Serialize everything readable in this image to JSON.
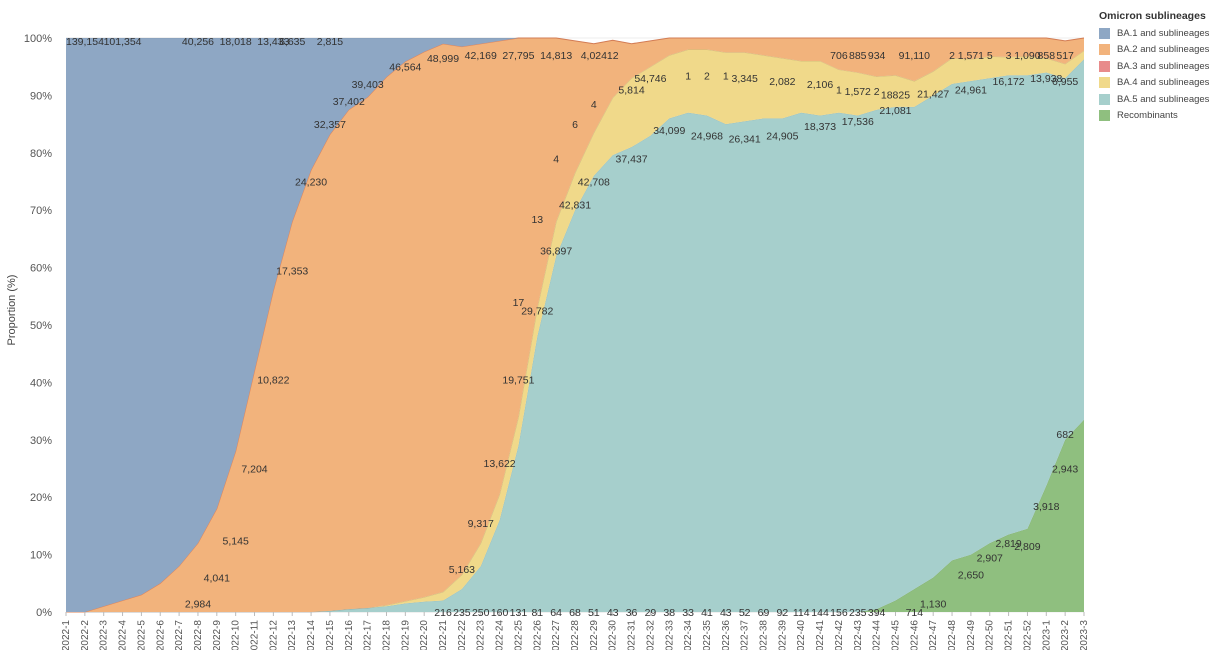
{
  "chart_data": {
    "type": "area",
    "stacked": "percent",
    "title": "",
    "xlabel": "",
    "ylabel": "Proportion (%)",
    "ylim": [
      0,
      100
    ],
    "yticks": [
      "0%",
      "10%",
      "20%",
      "30%",
      "40%",
      "50%",
      "60%",
      "70%",
      "80%",
      "90%",
      "100%"
    ],
    "grid": true,
    "legend": {
      "title": "Omicron sublineages",
      "position": "top-right"
    },
    "x": [
      "2022-1",
      "2022-2",
      "2022-3",
      "2022-4",
      "2022-5",
      "2022-6",
      "2022-7",
      "2022-8",
      "2022-9",
      "2022-10",
      "2022-11",
      "2022-12",
      "2022-13",
      "2022-14",
      "2022-15",
      "2022-16",
      "2022-17",
      "2022-18",
      "2022-19",
      "2022-20",
      "2022-21",
      "2022-22",
      "2022-23",
      "2022-24",
      "2022-25",
      "2022-26",
      "2022-27",
      "2022-28",
      "2022-29",
      "2022-30",
      "2022-31",
      "2022-32",
      "2022-33",
      "2022-34",
      "2022-35",
      "2022-36",
      "2022-37",
      "2022-38",
      "2022-39",
      "2022-40",
      "2022-41",
      "2022-42",
      "2022-43",
      "2022-44",
      "2022-45",
      "2022-46",
      "2022-47",
      "2022-48",
      "2022-49",
      "2022-50",
      "2022-51",
      "2022-52",
      "2023-1",
      "2023-2",
      "2023-3"
    ],
    "series": [
      {
        "name": "Recombinants",
        "color": "#8fbf7f",
        "values": [
          0,
          0,
          0,
          0,
          0,
          0,
          0,
          0,
          0,
          0,
          0,
          0,
          0,
          0,
          0,
          0,
          0,
          0,
          0,
          0,
          0,
          0,
          0,
          0,
          0,
          0,
          0,
          0,
          0,
          0,
          0,
          0,
          0,
          0,
          0,
          0,
          0,
          0,
          0,
          0,
          0,
          0,
          0,
          0.5,
          2,
          4,
          6,
          9,
          10,
          12,
          13.5,
          14.5,
          22,
          30,
          33.5
        ]
      },
      {
        "name": "BA.5 and sublineages",
        "color": "#a6cfcc",
        "values": [
          0,
          0,
          0,
          0,
          0,
          0,
          0,
          0,
          0,
          0,
          0,
          0,
          0,
          0,
          0.2,
          0.5,
          0.7,
          1.0,
          1.5,
          1.8,
          2,
          4,
          8,
          16,
          29,
          48,
          62,
          70,
          76,
          79.6,
          81,
          83,
          86,
          87,
          86.5,
          85,
          85.5,
          86,
          86,
          87,
          86.5,
          87,
          86.5,
          87,
          86,
          84,
          84,
          83,
          82.5,
          81,
          80,
          79,
          72,
          63,
          62.8
        ]
      },
      {
        "name": "BA.4 and sublineages",
        "color": "#f0d98a",
        "values": [
          0,
          0,
          0,
          0,
          0,
          0,
          0,
          0,
          0,
          0,
          0,
          0,
          0,
          0,
          0,
          0,
          0,
          0.2,
          0.4,
          0.8,
          1.5,
          2.5,
          4,
          4.5,
          5,
          5,
          6,
          6.5,
          7.5,
          10,
          12,
          12,
          11,
          11,
          11.5,
          12.5,
          12,
          11,
          10.5,
          9,
          9.5,
          7.5,
          7.5,
          5.8,
          5.5,
          4.5,
          4.2,
          4.5,
          3.8,
          3.8,
          3.2,
          3.3,
          2.5,
          2.5,
          1.5
        ]
      },
      {
        "name": "BA.3 and sublineages",
        "color": "#e88b8b",
        "values": [
          0,
          0,
          0,
          0,
          0,
          0,
          0,
          0,
          0,
          0,
          0,
          0,
          0,
          0,
          0,
          0,
          0,
          0,
          0,
          0,
          0,
          0,
          0,
          0,
          0,
          0,
          0,
          0,
          0,
          0,
          0,
          0,
          0,
          0,
          0,
          0,
          0,
          0,
          0,
          0,
          0,
          0,
          0,
          0,
          0,
          0,
          0,
          0,
          0,
          0,
          0,
          0,
          0,
          0,
          0
        ]
      },
      {
        "name": "BA.2 and sublineages",
        "color": "#f2b37c",
        "values": [
          0,
          0,
          1,
          2,
          3,
          5,
          8,
          12,
          18,
          28,
          42,
          56,
          68,
          77,
          83,
          87,
          89,
          92,
          94,
          95,
          95.5,
          92,
          87,
          79,
          66,
          47,
          32,
          23,
          15.5,
          10,
          6,
          4.5,
          3,
          2,
          2,
          2.5,
          2.5,
          3,
          3.5,
          4,
          4,
          5.5,
          6,
          7.2,
          7,
          7.5,
          7.8,
          6.3,
          6.2,
          6.2,
          6.3,
          5.7,
          4,
          4,
          2.2
        ]
      },
      {
        "name": "BA.1 and sublineages",
        "color": "#8ea7c4",
        "values": [
          100,
          100,
          99,
          98,
          97,
          95,
          92,
          88,
          82,
          72,
          58,
          44,
          32,
          23,
          16.8,
          12.5,
          10.3,
          6.8,
          4.1,
          2.4,
          1,
          1.5,
          1,
          0.5,
          0,
          0,
          0,
          0,
          0,
          0,
          0,
          0,
          0,
          0,
          0,
          0,
          0,
          0,
          0,
          0,
          0,
          0,
          0,
          0,
          0,
          0,
          0,
          0,
          0,
          0,
          0,
          0,
          0,
          0,
          0
        ]
      }
    ],
    "data_labels": [
      {
        "x": "2022-1",
        "y": 99.5,
        "text": "139,154"
      },
      {
        "x": "2022-4",
        "y": 99.5,
        "text": "101,354"
      },
      {
        "x": "2022-8",
        "y": 99.5,
        "text": "40,256"
      },
      {
        "x": "2022-10",
        "y": 99.5,
        "text": "18,018"
      },
      {
        "x": "2022-12",
        "y": 99.5,
        "text": "13,433"
      },
      {
        "x": "2022-13",
        "y": 99.5,
        "text": "6,635"
      },
      {
        "x": "2022-15",
        "y": 99.5,
        "text": "2,815"
      },
      {
        "x": "2022-8",
        "y": 1.5,
        "text": "2,984"
      },
      {
        "x": "2022-9",
        "y": 6,
        "text": "4,041"
      },
      {
        "x": "2022-10",
        "y": 12.5,
        "text": "5,145"
      },
      {
        "x": "2022-11",
        "y": 25,
        "text": "7,204"
      },
      {
        "x": "2022-12",
        "y": 40.5,
        "text": "10,822"
      },
      {
        "x": "2022-13",
        "y": 59.5,
        "text": "17,353"
      },
      {
        "x": "2022-14",
        "y": 75,
        "text": "24,230"
      },
      {
        "x": "2022-15",
        "y": 85,
        "text": "32,357"
      },
      {
        "x": "2022-16",
        "y": 89,
        "text": "37,402"
      },
      {
        "x": "2022-17",
        "y": 92,
        "text": "39,403"
      },
      {
        "x": "2022-19",
        "y": 95,
        "text": "46,564"
      },
      {
        "x": "2022-21",
        "y": 96.5,
        "text": "48,999"
      },
      {
        "x": "2022-23",
        "y": 97,
        "text": "42,169"
      },
      {
        "x": "2022-25",
        "y": 97,
        "text": "27,795"
      },
      {
        "x": "2022-27",
        "y": 97,
        "text": "14,813"
      },
      {
        "x": "2022-29",
        "y": 97,
        "text": "4,024"
      },
      {
        "x": "2022-30",
        "y": 97,
        "text": "12"
      },
      {
        "x": "2022-31",
        "y": 91,
        "text": "5,814"
      },
      {
        "x": "2022-32",
        "y": 93,
        "text": "54,746"
      },
      {
        "x": "2022-34",
        "y": 93.5,
        "text": "1"
      },
      {
        "x": "2022-35",
        "y": 93.5,
        "text": "2"
      },
      {
        "x": "2022-36",
        "y": 93.5,
        "text": "1"
      },
      {
        "x": "2022-37",
        "y": 93,
        "text": "3,345"
      },
      {
        "x": "2022-39",
        "y": 92.5,
        "text": "2,082"
      },
      {
        "x": "2022-41",
        "y": 92,
        "text": "2,106"
      },
      {
        "x": "2022-42",
        "y": 91,
        "text": "1"
      },
      {
        "x": "2022-43",
        "y": 90.8,
        "text": "1,572"
      },
      {
        "x": "2022-44",
        "y": 90.8,
        "text": "2"
      },
      {
        "x": "2022-45",
        "y": 90.2,
        "text": "18825"
      },
      {
        "x": "2022-42",
        "y": 97,
        "text": "706"
      },
      {
        "x": "2022-43",
        "y": 97,
        "text": "885"
      },
      {
        "x": "2022-44",
        "y": 97,
        "text": "934"
      },
      {
        "x": "2022-46",
        "y": 97,
        "text": "91,110"
      },
      {
        "x": "2022-48",
        "y": 97,
        "text": "2"
      },
      {
        "x": "2022-49",
        "y": 97,
        "text": "1,571"
      },
      {
        "x": "2022-50",
        "y": 97,
        "text": "5"
      },
      {
        "x": "2022-51",
        "y": 97,
        "text": "3"
      },
      {
        "x": "2022-52",
        "y": 97,
        "text": "1,090"
      },
      {
        "x": "2023-1",
        "y": 97,
        "text": "858"
      },
      {
        "x": "2023-2",
        "y": 97,
        "text": "517"
      },
      {
        "x": "2022-28",
        "y": 85,
        "text": "6"
      },
      {
        "x": "2022-29",
        "y": 88.5,
        "text": "4"
      },
      {
        "x": "2022-27",
        "y": 79,
        "text": "4"
      },
      {
        "x": "2022-26",
        "y": 68.5,
        "text": "13"
      },
      {
        "x": "2022-25",
        "y": 54,
        "text": "17"
      },
      {
        "x": "2022-26",
        "y": 52.5,
        "text": "29,782"
      },
      {
        "x": "2022-27",
        "y": 63,
        "text": "36,897"
      },
      {
        "x": "2022-28",
        "y": 71,
        "text": "42,831"
      },
      {
        "x": "2022-29",
        "y": 75,
        "text": "42,708"
      },
      {
        "x": "2022-31",
        "y": 79,
        "text": "37,437"
      },
      {
        "x": "2022-33",
        "y": 84,
        "text": "34,099"
      },
      {
        "x": "2022-35",
        "y": 83,
        "text": "24,968"
      },
      {
        "x": "2022-37",
        "y": 82.5,
        "text": "26,341"
      },
      {
        "x": "2022-39",
        "y": 83,
        "text": "24,905"
      },
      {
        "x": "2022-41",
        "y": 84.7,
        "text": "18,373"
      },
      {
        "x": "2022-43",
        "y": 85.5,
        "text": "17,536"
      },
      {
        "x": "2022-45",
        "y": 87.5,
        "text": "21,081"
      },
      {
        "x": "2022-47",
        "y": 90.3,
        "text": "21,427"
      },
      {
        "x": "2022-49",
        "y": 91,
        "text": "24,961"
      },
      {
        "x": "2022-51",
        "y": 92.5,
        "text": "16,172"
      },
      {
        "x": "2023-1",
        "y": 93,
        "text": "13,938"
      },
      {
        "x": "2023-2",
        "y": 92.5,
        "text": "6,955"
      },
      {
        "x": "2022-25",
        "y": 40.5,
        "text": "19,751"
      },
      {
        "x": "2022-24",
        "y": 26,
        "text": "13,622"
      },
      {
        "x": "2022-23",
        "y": 15.5,
        "text": "9,317"
      },
      {
        "x": "2022-22",
        "y": 7.5,
        "text": "5,163"
      },
      {
        "x": "2022-21",
        "y": 0,
        "text": "216"
      },
      {
        "x": "2022-22",
        "y": 0,
        "text": "235"
      },
      {
        "x": "2022-23",
        "y": 0,
        "text": "250"
      },
      {
        "x": "2022-24",
        "y": 0,
        "text": "160"
      },
      {
        "x": "2022-25",
        "y": 0,
        "text": "131"
      },
      {
        "x": "2022-26",
        "y": 0,
        "text": "81"
      },
      {
        "x": "2022-27",
        "y": 0,
        "text": "64"
      },
      {
        "x": "2022-28",
        "y": 0,
        "text": "68"
      },
      {
        "x": "2022-29",
        "y": 0,
        "text": "51"
      },
      {
        "x": "2022-30",
        "y": 0,
        "text": "43"
      },
      {
        "x": "2022-31",
        "y": 0,
        "text": "36"
      },
      {
        "x": "2022-32",
        "y": 0,
        "text": "29"
      },
      {
        "x": "2022-33",
        "y": 0,
        "text": "38"
      },
      {
        "x": "2022-34",
        "y": 0,
        "text": "33"
      },
      {
        "x": "2022-35",
        "y": 0,
        "text": "41"
      },
      {
        "x": "2022-36",
        "y": 0,
        "text": "43"
      },
      {
        "x": "2022-37",
        "y": 0,
        "text": "52"
      },
      {
        "x": "2022-38",
        "y": 0,
        "text": "69"
      },
      {
        "x": "2022-39",
        "y": 0,
        "text": "92"
      },
      {
        "x": "2022-40",
        "y": 0,
        "text": "114"
      },
      {
        "x": "2022-41",
        "y": 0,
        "text": "144"
      },
      {
        "x": "2022-42",
        "y": 0,
        "text": "156"
      },
      {
        "x": "2022-43",
        "y": 0,
        "text": "235"
      },
      {
        "x": "2022-44",
        "y": 0,
        "text": "394"
      },
      {
        "x": "2022-46",
        "y": 0,
        "text": "714"
      },
      {
        "x": "2022-47",
        "y": 1.5,
        "text": "1,130"
      },
      {
        "x": "2022-49",
        "y": 6.5,
        "text": "2,650"
      },
      {
        "x": "2022-50",
        "y": 9.5,
        "text": "2,907"
      },
      {
        "x": "2022-51",
        "y": 12,
        "text": "2,819"
      },
      {
        "x": "2022-52",
        "y": 11.5,
        "text": "2,809"
      },
      {
        "x": "2023-1",
        "y": 18.5,
        "text": "3,918"
      },
      {
        "x": "2023-2",
        "y": 25,
        "text": "2,943"
      },
      {
        "x": "2023-2",
        "y": 31,
        "text": "682"
      }
    ]
  }
}
